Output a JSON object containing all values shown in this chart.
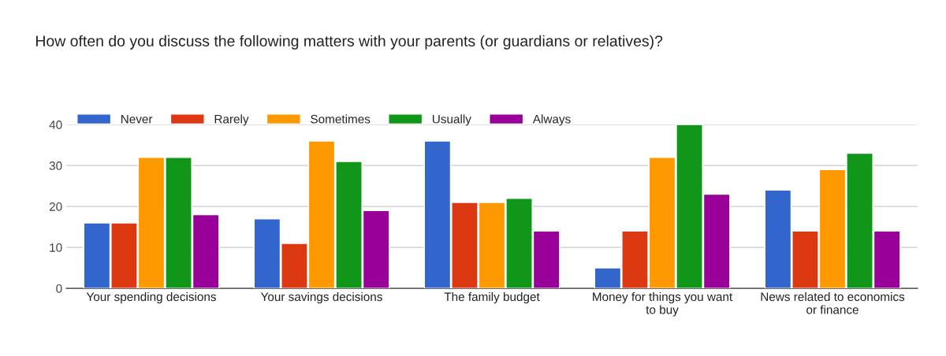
{
  "chart_data": {
    "type": "bar",
    "title": "How often do you discuss the following matters with your parents (or guardians or relatives)?",
    "categories": [
      "Your spending decisions",
      "Your savings decisions",
      "The family budget",
      "Money for things you want to buy",
      "News related to economics or finance"
    ],
    "series": [
      {
        "name": "Never",
        "color": "#3366cc",
        "values": [
          16,
          17,
          36,
          5,
          24
        ]
      },
      {
        "name": "Rarely",
        "color": "#dc3912",
        "values": [
          16,
          11,
          21,
          14,
          14
        ]
      },
      {
        "name": "Sometimes",
        "color": "#ff9900",
        "values": [
          32,
          36,
          21,
          32,
          29
        ]
      },
      {
        "name": "Usually",
        "color": "#109618",
        "values": [
          32,
          31,
          22,
          40,
          33
        ]
      },
      {
        "name": "Always",
        "color": "#990099",
        "values": [
          18,
          19,
          14,
          23,
          14
        ]
      }
    ],
    "ylim": [
      0,
      40
    ],
    "yticks": [
      0,
      10,
      20,
      30,
      40
    ],
    "grid": "y",
    "legend": "top left"
  }
}
